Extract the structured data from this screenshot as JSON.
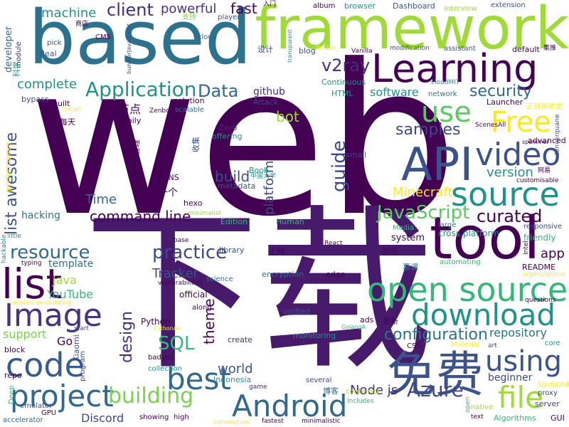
{
  "palette": {
    "deep_purple": "#440154",
    "indigo": "#3b528b",
    "blue": "#31688e",
    "teal": "#21918c",
    "green": "#35b779",
    "lime": "#5ec962",
    "yellow_green": "#a0da39",
    "yellow": "#fde725",
    "dark_blue": "#2c728e"
  },
  "words": [
    {
      "text": "web",
      "color": "#440154"
    },
    {
      "text": "下载",
      "color": "#481a6c"
    },
    {
      "text": "based",
      "color": "#2c728e"
    },
    {
      "text": "framework",
      "color": "#a0da39"
    },
    {
      "text": "Learning",
      "color": "#440154"
    },
    {
      "text": "tool",
      "color": "#440154"
    },
    {
      "text": "API",
      "color": "#3b528b"
    },
    {
      "text": "list",
      "color": "#440154"
    },
    {
      "text": "Image",
      "color": "#46327e"
    },
    {
      "text": "免费",
      "color": "#3b528b"
    },
    {
      "text": "open source",
      "color": "#35b779"
    },
    {
      "text": "download",
      "color": "#21918c"
    },
    {
      "text": "source",
      "color": "#21918c"
    },
    {
      "text": "project",
      "color": "#31688e"
    },
    {
      "text": "code",
      "color": "#365c8d"
    },
    {
      "text": "Android",
      "color": "#31688e"
    },
    {
      "text": "best",
      "color": "#31688e"
    },
    {
      "text": "video",
      "color": "#3b528b"
    },
    {
      "text": "use",
      "color": "#5ec962"
    },
    {
      "text": "Free",
      "color": "#fde725"
    },
    {
      "text": "Application",
      "color": "#21918c"
    },
    {
      "text": "Data",
      "color": "#31688e"
    },
    {
      "text": "v2ray",
      "color": "#472d7b"
    },
    {
      "text": "JavaScript",
      "color": "#5ec962"
    },
    {
      "text": "security",
      "color": "#31688e"
    },
    {
      "text": "using",
      "color": "#3b528b"
    },
    {
      "text": "file",
      "color": "#a0da39"
    },
    {
      "text": "building",
      "color": "#7ad151"
    },
    {
      "text": "curated",
      "color": "#440154"
    },
    {
      "text": "samples",
      "color": "#3e4989"
    },
    {
      "text": "resource",
      "color": "#31688e"
    },
    {
      "text": "practice",
      "color": "#3e4989"
    },
    {
      "text": "list awesome",
      "color": "#3b528b"
    },
    {
      "text": "guide",
      "color": "#3e4989"
    },
    {
      "text": "Azure",
      "color": "#3e4989"
    },
    {
      "text": "configuration",
      "color": "#2c728e"
    },
    {
      "text": "design",
      "color": "#472d7b"
    },
    {
      "text": "SQL",
      "color": "#35b779"
    },
    {
      "text": "theme",
      "color": "#440154"
    },
    {
      "text": "command line",
      "color": "#440154"
    },
    {
      "text": "client",
      "color": "#472d7b"
    },
    {
      "text": "powerful",
      "color": "#46327e"
    },
    {
      "text": "fast",
      "color": "#440154"
    },
    {
      "text": "machine",
      "color": "#21918c"
    },
    {
      "text": "build",
      "color": "#3b528b"
    },
    {
      "text": "version",
      "color": "#21918c"
    },
    {
      "text": "platform",
      "color": "#3e4989"
    },
    {
      "text": "Minecraft",
      "color": "#fde725"
    },
    {
      "text": "Time",
      "color": "#31688e"
    },
    {
      "text": "Node js",
      "color": "#472d7b"
    },
    {
      "text": "repository",
      "color": "#2c728e"
    },
    {
      "text": "software",
      "color": "#21918c"
    },
    {
      "text": "bot",
      "color": "#a0da39"
    },
    {
      "text": "complete",
      "color": "#21918c"
    },
    {
      "text": "app",
      "color": "#440154"
    },
    {
      "text": "world",
      "color": "#3b528b"
    },
    {
      "text": "Tracker",
      "color": "#3b528b"
    },
    {
      "text": "YouTube",
      "color": "#35b779"
    },
    {
      "text": "Java",
      "color": "#a0da39"
    },
    {
      "text": "support",
      "color": "#7ad151"
    },
    {
      "text": "hacking",
      "color": "#2c728e"
    },
    {
      "text": "template",
      "color": "#2c728e"
    },
    {
      "text": "github",
      "color": "#472d7b"
    },
    {
      "text": "节点",
      "color": "#440154"
    },
    {
      "text": "Discord",
      "color": "#3e4989"
    },
    {
      "text": "beginner",
      "color": "#3e4989"
    },
    {
      "text": "Go",
      "color": "#440154"
    },
    {
      "text": "Python",
      "color": "#440154"
    },
    {
      "text": "Dashboard",
      "color": "#3b528b"
    },
    {
      "text": "browser",
      "color": "#21918c"
    },
    {
      "text": "album",
      "color": "#440154"
    },
    {
      "text": "Interview",
      "color": "#a0da39"
    },
    {
      "text": "extension",
      "color": "#3b528b"
    },
    {
      "text": "Launcher",
      "color": "#440154"
    },
    {
      "text": "advanced",
      "color": "#440154"
    },
    {
      "text": "default",
      "color": "#440154"
    },
    {
      "text": "assistant",
      "color": "#3b528b"
    },
    {
      "text": "modification",
      "color": "#3e4989"
    },
    {
      "text": "Vanilla",
      "color": "#440154"
    },
    {
      "text": "network",
      "color": "#2c728e"
    },
    {
      "text": "一个",
      "color": "#440154"
    },
    {
      "text": "system",
      "color": "#440154"
    },
    {
      "text": "cross platform",
      "color": "#21918c"
    },
    {
      "text": "friendly",
      "color": "#35b779"
    },
    {
      "text": "responsive",
      "color": "#3e4989"
    },
    {
      "text": "encryption",
      "color": "#31688e"
    },
    {
      "text": "edge",
      "color": "#440154"
    },
    {
      "text": "official",
      "color": "#440154"
    },
    {
      "text": "automating",
      "color": "#35b779"
    },
    {
      "text": "README",
      "color": "#440154"
    },
    {
      "text": "Algorithms",
      "color": "#35b779"
    },
    {
      "text": "server",
      "color": "#3e4989"
    },
    {
      "text": "GUI",
      "color": "#440154"
    },
    {
      "text": "core",
      "color": "#21918c"
    },
    {
      "text": "large",
      "color": "#2c728e"
    },
    {
      "text": "Media",
      "color": "#35b779"
    },
    {
      "text": "library",
      "color": "#3b528b"
    },
    {
      "text": "metadata",
      "color": "#3b528b"
    },
    {
      "text": "Human",
      "color": "#35b779"
    },
    {
      "text": "Edition",
      "color": "#35b779"
    },
    {
      "text": "Zero",
      "color": "#472d7b"
    },
    {
      "text": "offering",
      "color": "#21918c"
    },
    {
      "text": "Book",
      "color": "#21918c"
    },
    {
      "text": "DNS",
      "color": "#440154"
    },
    {
      "text": "hexo",
      "color": "#440154"
    },
    {
      "text": "Real",
      "color": "#3b528b"
    },
    {
      "text": "HTML",
      "color": "#21918c"
    },
    {
      "text": "Continuous",
      "color": "#21918c"
    },
    {
      "text": "blog",
      "color": "#3b528b"
    },
    {
      "text": "Attack",
      "color": "#3e4989"
    },
    {
      "text": "solution",
      "color": "#440154"
    },
    {
      "text": "daily",
      "color": "#440154"
    },
    {
      "text": "built",
      "color": "#440154"
    },
    {
      "text": "bypass",
      "color": "#3e4989"
    },
    {
      "text": "scalable",
      "color": "#2c728e"
    },
    {
      "text": "player",
      "color": "#3b528b"
    },
    {
      "text": "支持",
      "color": "#7ad151"
    },
    {
      "text": "CMS",
      "color": "#440154"
    },
    {
      "text": "cloud",
      "color": "#31688e"
    },
    {
      "text": "pick",
      "color": "#3b528b"
    },
    {
      "text": "设计",
      "color": "#3e4989"
    },
    {
      "text": "module",
      "color": "#472d7b"
    },
    {
      "text": "developer",
      "color": "#31688e"
    },
    {
      "text": "科学",
      "color": "#21918c"
    },
    {
      "text": "small",
      "color": "#3e4989"
    },
    {
      "text": "每天",
      "color": "#440154"
    },
    {
      "text": "管理",
      "color": "#440154"
    },
    {
      "text": "收集",
      "color": "#3b528b"
    },
    {
      "text": "performance",
      "color": "#fde725"
    },
    {
      "text": "上网",
      "color": "#440154"
    },
    {
      "text": "前后",
      "color": "#440154"
    },
    {
      "text": "慕课",
      "color": "#2c728e"
    },
    {
      "text": "更新",
      "color": "#440154"
    },
    {
      "text": "博客",
      "color": "#31688e"
    },
    {
      "text": "分离",
      "color": "#440154"
    },
    {
      "text": "正则表达式",
      "color": "#fde725"
    },
    {
      "text": "emulator",
      "color": "#3b528b"
    },
    {
      "text": "accelerator",
      "color": "#31688e"
    },
    {
      "text": "GPU",
      "color": "#440154"
    },
    {
      "text": "Deep",
      "color": "#35b779"
    },
    {
      "text": "repo",
      "color": "#440154"
    },
    {
      "text": "block",
      "color": "#440154"
    },
    {
      "text": "badges",
      "color": "#440154"
    },
    {
      "text": "collection",
      "color": "#21918c"
    },
    {
      "text": "showing",
      "color": "#440154"
    },
    {
      "text": "high",
      "color": "#440154"
    },
    {
      "text": "connection",
      "color": "#fde725"
    },
    {
      "text": "fastest",
      "color": "#440154"
    },
    {
      "text": "minimalistic",
      "color": "#440154"
    },
    {
      "text": "game",
      "color": "#472d7b"
    },
    {
      "text": "several",
      "color": "#3e4989"
    },
    {
      "text": "Includes",
      "color": "#35b779"
    },
    {
      "text": "container",
      "color": "#a0da39"
    },
    {
      "text": "native",
      "color": "#a0da39"
    },
    {
      "text": "text",
      "color": "#440154"
    },
    {
      "text": "proxy",
      "color": "#3e4989"
    },
    {
      "text": "Updated",
      "color": "#fde725"
    },
    {
      "text": "Material",
      "color": "#fde725"
    },
    {
      "text": "art",
      "color": "#3e4989"
    },
    {
      "text": "ads",
      "color": "#440154"
    },
    {
      "text": "CSS",
      "color": "#440154"
    },
    {
      "text": "unified",
      "color": "#3b528b"
    },
    {
      "text": "monitoring",
      "color": "#21918c"
    },
    {
      "text": "create",
      "color": "#472d7b"
    },
    {
      "text": "Indonesia",
      "color": "#21918c"
    },
    {
      "text": "along",
      "color": "#440154"
    },
    {
      "text": "science",
      "color": "#2c728e"
    },
    {
      "text": "vulnerabilities",
      "color": "#440154"
    },
    {
      "text": "start",
      "color": "#3b528b"
    },
    {
      "text": "typing",
      "color": "#440154"
    },
    {
      "text": "little",
      "color": "#21918c"
    },
    {
      "text": "hackable",
      "color": "#21918c"
    },
    {
      "text": "Xiaomi",
      "color": "#3e4989"
    },
    {
      "text": "program",
      "color": "#3e4989"
    },
    {
      "text": "Intel",
      "color": "#440154"
    },
    {
      "text": "React",
      "color": "#440154"
    },
    {
      "text": "transparent",
      "color": "#21918c"
    },
    {
      "text": "fiction",
      "color": "#fde725"
    },
    {
      "text": "Zenbot",
      "color": "#440154"
    },
    {
      "text": "run",
      "color": "#440154"
    },
    {
      "text": "spammer",
      "color": "#440154"
    },
    {
      "text": "ScenesAll",
      "color": "#440154"
    },
    {
      "text": "denverquane",
      "color": "#3b528b"
    },
    {
      "text": "customisable",
      "color": "#440154"
    },
    {
      "text": "网易",
      "color": "#440154"
    },
    {
      "text": "organizations",
      "color": "#fde725"
    },
    {
      "text": "入门",
      "color": "#440154"
    },
    {
      "text": "商店",
      "color": "#440154"
    },
    {
      "text": "bundlerJavaScript",
      "color": "#3e4989"
    },
    {
      "text": "cloudMIT",
      "color": "#21918c"
    },
    {
      "text": "中国大学",
      "color": "#21918c"
    },
    {
      "text": "trojan",
      "color": "#fde725"
    },
    {
      "text": "base",
      "color": "#440154"
    },
    {
      "text": "minimalist",
      "color": "#a0da39"
    },
    {
      "text": "monitorConsolidating",
      "color": "#fde725"
    },
    {
      "text": "PythonAn",
      "color": "#fde725"
    },
    {
      "text": "GolangA",
      "color": "#35b779"
    },
    {
      "text": "open",
      "color": "#35b779"
    },
    {
      "text": "questions",
      "color": "#440154"
    },
    {
      "text": "集推",
      "color": "#440154"
    }
  ]
}
